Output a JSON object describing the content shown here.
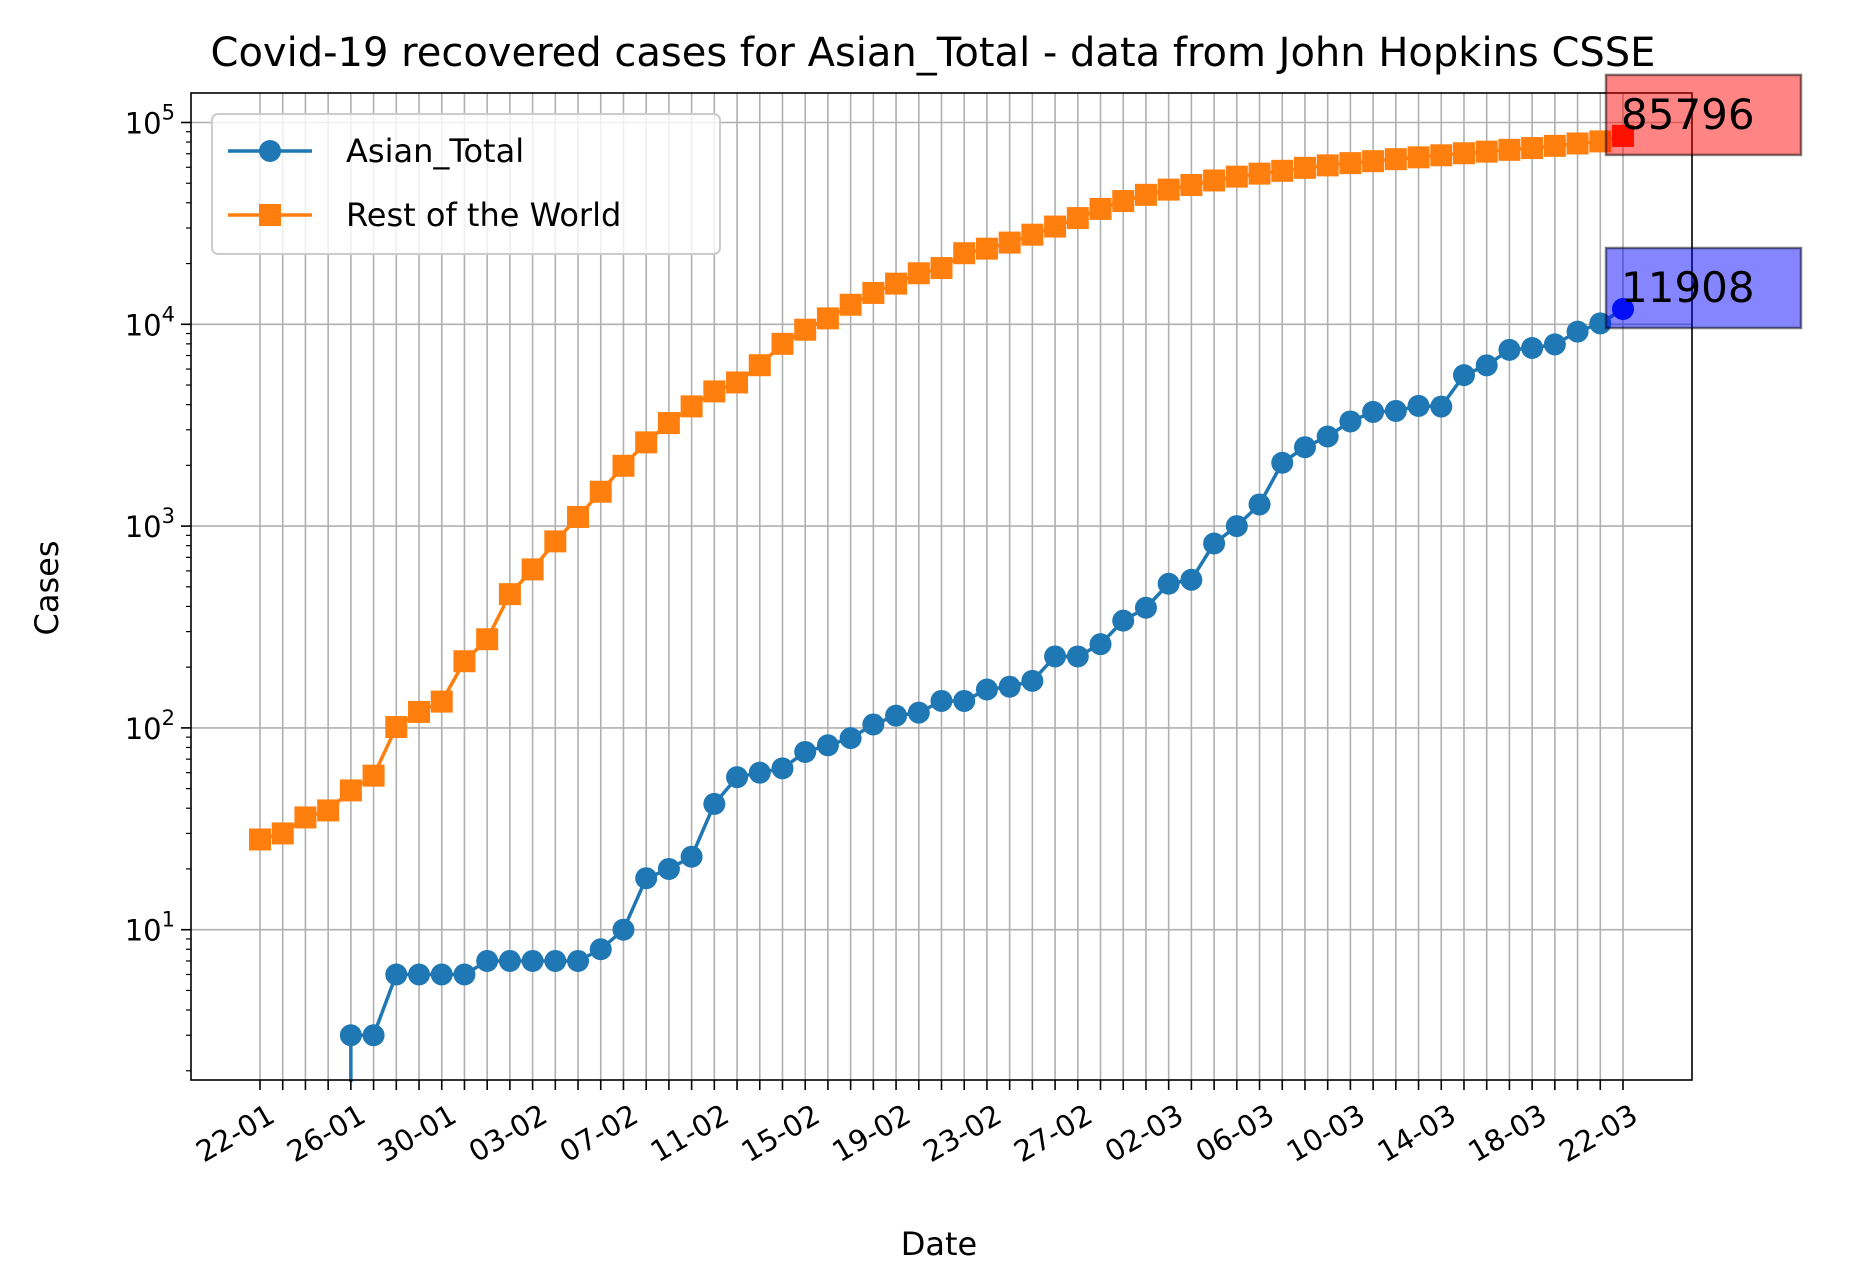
{
  "chart_data": {
    "type": "line",
    "title": "Covid-19 recovered cases for Asian_Total - data from John Hopkins CSSE",
    "xlabel": "Date",
    "ylabel": "Cases",
    "yscale": "log",
    "ylim": [
      1.8,
      140000
    ],
    "yticks": [
      {
        "value": 10,
        "base": "10",
        "exp": "1"
      },
      {
        "value": 100,
        "base": "10",
        "exp": "2"
      },
      {
        "value": 1000,
        "base": "10",
        "exp": "3"
      },
      {
        "value": 10000,
        "base": "10",
        "exp": "4"
      },
      {
        "value": 100000,
        "base": "10",
        "exp": "5"
      }
    ],
    "x": [
      "22-01",
      "23-01",
      "24-01",
      "25-01",
      "26-01",
      "27-01",
      "28-01",
      "29-01",
      "30-01",
      "31-01",
      "01-02",
      "02-02",
      "03-02",
      "04-02",
      "05-02",
      "06-02",
      "07-02",
      "08-02",
      "09-02",
      "10-02",
      "11-02",
      "12-02",
      "13-02",
      "14-02",
      "15-02",
      "16-02",
      "17-02",
      "18-02",
      "19-02",
      "20-02",
      "21-02",
      "22-02",
      "23-02",
      "24-02",
      "25-02",
      "26-02",
      "27-02",
      "28-02",
      "29-02",
      "01-03",
      "02-03",
      "03-03",
      "04-03",
      "05-03",
      "06-03",
      "07-03",
      "08-03",
      "09-03",
      "10-03",
      "11-03",
      "12-03",
      "13-03",
      "14-03",
      "15-03",
      "16-03",
      "17-03",
      "18-03",
      "19-03",
      "20-03",
      "21-03",
      "22-03"
    ],
    "xtick_labels": [
      "22-01",
      "26-01",
      "30-01",
      "03-02",
      "07-02",
      "11-02",
      "15-02",
      "19-02",
      "23-02",
      "27-02",
      "02-03",
      "06-03",
      "10-03",
      "14-03",
      "18-03",
      "22-03"
    ],
    "grid": true,
    "legend_position": "top-left",
    "series": [
      {
        "name": "Asian_Total",
        "color": "#1f77b4",
        "marker": "circle",
        "values": [
          0,
          0,
          0,
          0,
          3,
          3,
          6,
          6,
          6,
          6,
          7,
          7,
          7,
          7,
          7,
          8,
          10,
          18,
          20,
          23,
          42,
          57,
          60,
          63,
          76,
          82,
          89,
          104,
          115,
          119,
          136,
          136,
          155,
          160,
          171,
          226,
          226,
          260,
          340,
          394,
          518,
          542,
          820,
          1000,
          1280,
          2060,
          2460,
          2780,
          3300,
          3680,
          3720,
          3940,
          3910,
          5600,
          6260,
          7470,
          7630,
          7950,
          9200,
          10100,
          11908
        ]
      },
      {
        "name": "Rest of the World",
        "color": "#ff7f0e",
        "marker": "square",
        "values": [
          28,
          30,
          36,
          39,
          49,
          58,
          101,
          120,
          135,
          214,
          275,
          460,
          610,
          840,
          1110,
          1480,
          1990,
          2600,
          3240,
          3920,
          4650,
          5150,
          6270,
          8000,
          9400,
          10700,
          12500,
          14300,
          15900,
          17900,
          19000,
          22500,
          23700,
          25400,
          27800,
          30500,
          33600,
          37300,
          40800,
          43800,
          46500,
          49000,
          51600,
          53900,
          55800,
          57600,
          59600,
          61300,
          62900,
          64300,
          65800,
          67200,
          68800,
          70400,
          71700,
          73200,
          74700,
          76600,
          78700,
          80600,
          85796
        ]
      }
    ],
    "annotations": [
      {
        "text": "85796",
        "series": "Rest of the World",
        "value": 85796,
        "color": "#ff0000"
      },
      {
        "text": "11908",
        "series": "Asian_Total",
        "value": 11908,
        "color": "#0000ff"
      }
    ]
  }
}
